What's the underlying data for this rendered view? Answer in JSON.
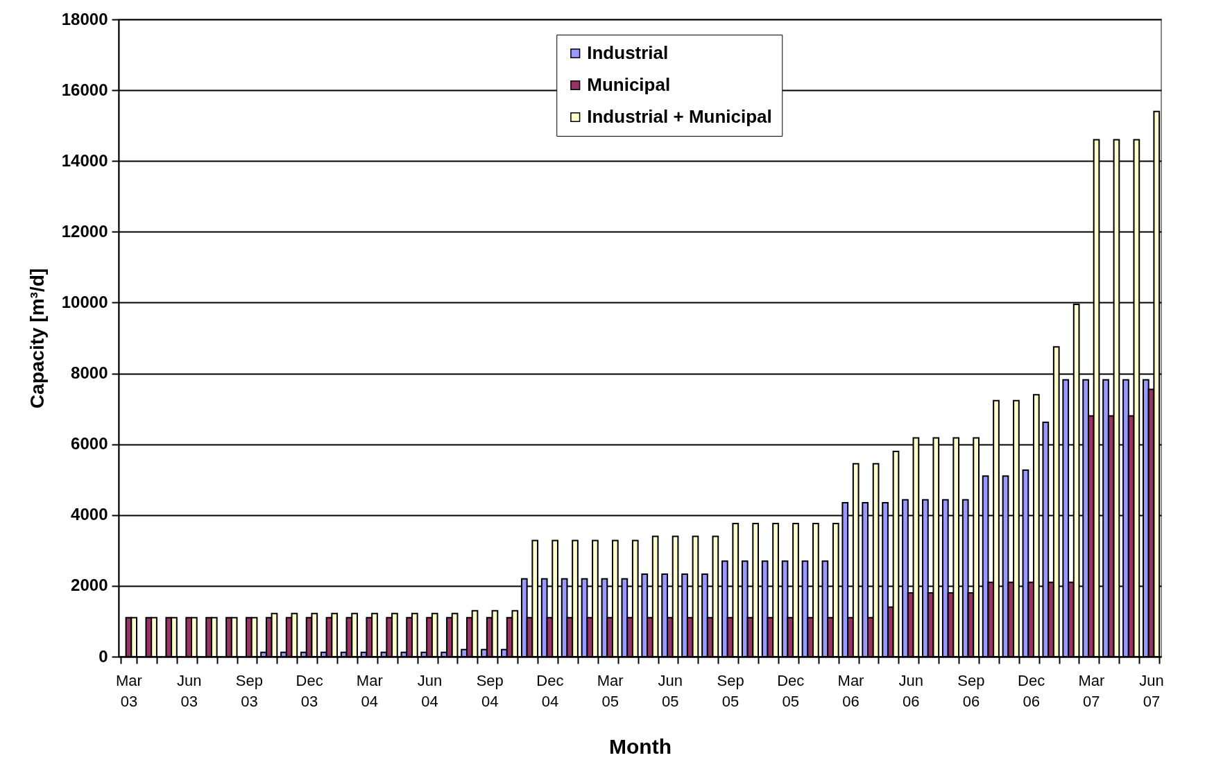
{
  "chart_data": {
    "type": "bar",
    "xlabel": "Month",
    "ylabel": "Capacity [m³/d]",
    "categories": [
      "Mar 03",
      null,
      null,
      "Jun 03",
      null,
      null,
      "Sep 03",
      null,
      null,
      "Dec 03",
      null,
      null,
      "Mar 04",
      null,
      null,
      "Jun 04",
      null,
      null,
      "Sep 04",
      null,
      null,
      "Dec 04",
      null,
      null,
      "Mar 05",
      null,
      null,
      "Jun 05",
      null,
      null,
      "Sep 05",
      null,
      null,
      "Dec 05",
      null,
      null,
      "Mar 06",
      null,
      null,
      "Jun 06",
      null,
      null,
      "Sep 06",
      null,
      null,
      "Dec 06",
      null,
      null,
      "Mar 07",
      null,
      null,
      "Jun 07"
    ],
    "series": [
      {
        "name": "Industrial",
        "color": "#9999ff",
        "values": [
          0,
          0,
          0,
          0,
          0,
          0,
          0,
          120,
          120,
          120,
          120,
          120,
          120,
          120,
          120,
          120,
          120,
          200,
          200,
          200,
          2200,
          2200,
          2200,
          2200,
          2200,
          2200,
          2330,
          2330,
          2330,
          2330,
          2700,
          2700,
          2700,
          2700,
          2700,
          2700,
          4350,
          4350,
          4350,
          4430,
          4430,
          4430,
          4430,
          5100,
          5100,
          5270,
          6620,
          7820,
          7820,
          7820,
          7820,
          7820
        ]
      },
      {
        "name": "Municipal",
        "color": "#993366",
        "values": [
          1100,
          1100,
          1100,
          1100,
          1100,
          1100,
          1100,
          1100,
          1100,
          1100,
          1100,
          1100,
          1100,
          1100,
          1100,
          1100,
          1100,
          1100,
          1100,
          1100,
          1100,
          1100,
          1100,
          1100,
          1100,
          1100,
          1100,
          1100,
          1100,
          1100,
          1100,
          1100,
          1100,
          1100,
          1100,
          1100,
          1100,
          1100,
          1400,
          1800,
          1800,
          1800,
          1800,
          2100,
          2100,
          2100,
          2100,
          2100,
          6800,
          6800,
          6800,
          7550
        ]
      },
      {
        "name": "Industrial + Municipal",
        "color": "#ffffcc",
        "values": [
          1100,
          1100,
          1100,
          1100,
          1100,
          1100,
          1100,
          1220,
          1220,
          1220,
          1220,
          1220,
          1220,
          1220,
          1220,
          1220,
          1220,
          1300,
          1300,
          1300,
          3280,
          3280,
          3280,
          3280,
          3280,
          3280,
          3400,
          3400,
          3400,
          3400,
          3760,
          3760,
          3760,
          3760,
          3760,
          3760,
          5450,
          5450,
          5800,
          6180,
          6180,
          6180,
          6180,
          7230,
          7230,
          7400,
          8750,
          9950,
          14600,
          14600,
          14600,
          15400
        ]
      }
    ],
    "ylim": [
      0,
      18000
    ],
    "yticks": [
      0,
      2000,
      4000,
      6000,
      8000,
      10000,
      12000,
      14000,
      16000,
      18000
    ],
    "grid": "y",
    "legend": "top"
  }
}
